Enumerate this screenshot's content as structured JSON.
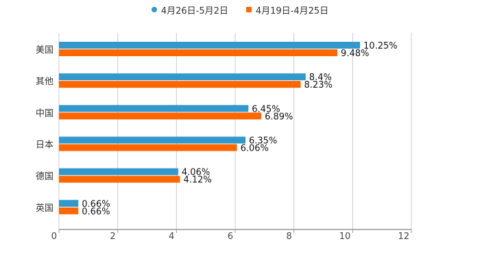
{
  "chart_data": {
    "type": "bar",
    "orientation": "horizontal",
    "title": "",
    "xlabel": "",
    "ylabel": "",
    "xlim": [
      0,
      12
    ],
    "xticks": [
      0,
      2,
      4,
      6,
      8,
      10,
      12
    ],
    "grid": true,
    "legend_position": "top",
    "categories": [
      "美国",
      "其他",
      "中国",
      "日本",
      "德国",
      "英国"
    ],
    "series": [
      {
        "name": "4月26日-5月2日",
        "color": "#3399cc",
        "marker": "circle",
        "values": [
          10.25,
          8.4,
          6.45,
          6.35,
          4.06,
          0.66
        ],
        "labels": [
          "10.25%",
          "8.4%",
          "6.45%",
          "6.35%",
          "4.06%",
          "0.66%"
        ]
      },
      {
        "name": "4月19日-4月25日",
        "color": "#ff6600",
        "marker": "square",
        "values": [
          9.48,
          8.23,
          6.89,
          6.06,
          4.12,
          0.66
        ],
        "labels": [
          "9.48%",
          "8.23%",
          "6.89%",
          "6.06%",
          "4.12%",
          "0.66%"
        ]
      }
    ]
  },
  "legend": {
    "items": [
      {
        "label": "4月26日-5月2日",
        "color": "#3399cc"
      },
      {
        "label": "4月19日-4月25日",
        "color": "#ff6600"
      }
    ]
  }
}
